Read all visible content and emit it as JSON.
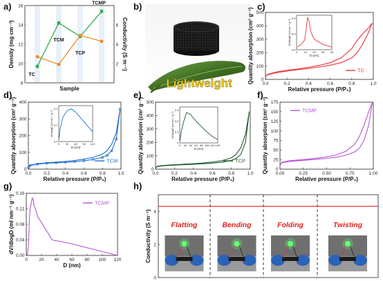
{
  "figure": {
    "panel_labels": [
      "a)",
      "b)",
      "c)",
      "d)",
      "e)",
      "f)",
      "g)",
      "h)"
    ],
    "photo_caption": "Lightweight"
  },
  "chart_data": [
    {
      "panel": "a",
      "type": "line",
      "categories": [
        "TC",
        "TCM",
        "TCP",
        "TCMP"
      ],
      "xlabel": "Sample",
      "ylabel_left": "Density (mg cm⁻³)",
      "ylabel_right": "Conductivity (S m⁻¹)",
      "ylim_left": [
        8,
        16
      ],
      "yticks_left": [
        "8",
        "10",
        "12",
        "14",
        "16"
      ],
      "ylim_right": [
        0,
        8
      ],
      "yticks_right": [
        "2",
        "4",
        "6"
      ],
      "colors": {
        "density": "#37ab4a",
        "conductivity": "#f08a24"
      },
      "series": [
        {
          "axis": "left",
          "values": [
            9.7,
            14.2,
            12.8,
            15.4
          ]
        },
        {
          "axis": "right",
          "values": [
            2.7,
            1.9,
            4.9,
            4.3
          ]
        }
      ]
    },
    {
      "panel": "c",
      "type": "line",
      "color": "#e8333b",
      "xlabel": "Relative pressure (P/P₀)",
      "ylabel": "Quantity absorption (cm³ g⁻¹)",
      "ylim": [
        0,
        500
      ],
      "yticks": [
        "0",
        "100",
        "200",
        "300",
        "400",
        "500"
      ],
      "xlim": [
        0,
        1
      ],
      "xticks": [
        "0.0",
        "0.2",
        "0.4",
        "0.6",
        "0.8",
        "1.0"
      ],
      "series": [
        {
          "name": "TC",
          "x": [
            0.0,
            0.02,
            0.1,
            0.2,
            0.3,
            0.4,
            0.5,
            0.6,
            0.7,
            0.8,
            0.85,
            0.9,
            0.95,
            0.99
          ],
          "y": [
            20,
            35,
            50,
            62,
            72,
            82,
            93,
            106,
            125,
            160,
            200,
            260,
            340,
            420
          ],
          "desorption_y": [
            20,
            38,
            55,
            68,
            78,
            90,
            105,
            125,
            160,
            230,
            290,
            340,
            380,
            420
          ]
        }
      ],
      "inset": {
        "xlabel": "D (nm)",
        "ylabel": "dV/dlogD (ml nm⁻¹ g⁻¹)",
        "xticks": [
          "0",
          "10",
          "20",
          "30",
          "40"
        ],
        "yticks": [
          "0.0",
          "0.3",
          "0.6"
        ],
        "x": [
          1,
          5,
          9,
          11,
          12.5,
          14,
          16,
          20,
          30,
          40
        ],
        "y": [
          0.05,
          0.1,
          0.18,
          0.4,
          0.62,
          0.55,
          0.35,
          0.2,
          0.1,
          0.05
        ]
      }
    },
    {
      "panel": "d",
      "type": "line",
      "color": "#1f6fd0",
      "xlabel": "Relative pressure (P/P₀)",
      "ylabel": "Quantity absorption (cm³ g⁻¹)",
      "ylim": [
        0,
        400
      ],
      "yticks": [
        "0",
        "100",
        "200",
        "300",
        "400"
      ],
      "xlim": [
        0,
        1
      ],
      "xticks": [
        "0.0",
        "0.2",
        "0.4",
        "0.6",
        "0.8",
        "1.0"
      ],
      "series": [
        {
          "name": "TCM",
          "x": [
            0.0,
            0.02,
            0.1,
            0.2,
            0.3,
            0.4,
            0.5,
            0.6,
            0.7,
            0.8,
            0.85,
            0.9,
            0.95,
            0.99
          ],
          "y": [
            10,
            22,
            30,
            35,
            38,
            41,
            45,
            50,
            58,
            70,
            82,
            110,
            180,
            360
          ],
          "desorption_y": [
            10,
            24,
            33,
            38,
            42,
            46,
            52,
            60,
            70,
            90,
            110,
            150,
            220,
            360
          ]
        }
      ],
      "inset": {
        "xlabel": "D (nm)",
        "ylabel": "dV/dlogD (ml nm⁻¹ g⁻¹)",
        "xticks": [
          "0",
          "30",
          "60",
          "90",
          "120"
        ],
        "yticks": [
          "0.0",
          "0.1",
          "0.2"
        ],
        "x": [
          1,
          5,
          15,
          30,
          45,
          60,
          80,
          100,
          120
        ],
        "y": [
          0.02,
          0.08,
          0.15,
          0.19,
          0.2,
          0.18,
          0.14,
          0.1,
          0.06
        ]
      }
    },
    {
      "panel": "e",
      "type": "line",
      "color": "#1e5b2c",
      "xlabel": "Relative pressure (P/P₀)",
      "ylabel": "Quantity absorption (cm³ g⁻¹)",
      "ylim": [
        0,
        500
      ],
      "yticks": [
        "0",
        "100",
        "200",
        "300",
        "400",
        "500"
      ],
      "xlim": [
        0,
        1
      ],
      "xticks": [
        "0.0",
        "0.2",
        "0.4",
        "0.6",
        "0.8",
        "1.0"
      ],
      "series": [
        {
          "name": "TCP",
          "x": [
            0.0,
            0.02,
            0.1,
            0.2,
            0.3,
            0.4,
            0.5,
            0.6,
            0.7,
            0.8,
            0.85,
            0.9,
            0.95,
            0.99
          ],
          "y": [
            10,
            20,
            26,
            30,
            33,
            36,
            40,
            45,
            52,
            65,
            80,
            110,
            200,
            430
          ],
          "desorption_y": [
            10,
            22,
            29,
            33,
            37,
            41,
            46,
            53,
            63,
            85,
            110,
            160,
            260,
            430
          ]
        }
      ],
      "inset": {
        "xlabel": "D (nm)",
        "ylabel": "dV/dlogD (ml nm⁻¹ g⁻¹)",
        "xticks": [
          "0",
          "20",
          "40",
          "60",
          "80",
          "100",
          "120",
          "140"
        ],
        "yticks": [
          "0",
          "0.1",
          "0.2",
          "0.3"
        ],
        "x": [
          1,
          5,
          15,
          25,
          40,
          60,
          80,
          100,
          120,
          140
        ],
        "y": [
          0.02,
          0.1,
          0.2,
          0.28,
          0.26,
          0.2,
          0.15,
          0.1,
          0.06,
          0.03
        ]
      }
    },
    {
      "panel": "f",
      "type": "line",
      "color": "#b156d3",
      "xlabel": "Relative pressure (P/P₀)",
      "ylabel": "Quantity absorption (cm³ g⁻¹)",
      "ylim": [
        0,
        175
      ],
      "yticks": [
        "0",
        "25",
        "50",
        "75",
        "100",
        "125",
        "150",
        "175"
      ],
      "xlim": [
        0,
        1
      ],
      "xticks": [
        "0.00",
        "0.25",
        "0.50",
        "0.75",
        "1.00"
      ],
      "series": [
        {
          "name": "TCMP",
          "x": [
            0.0,
            0.02,
            0.1,
            0.2,
            0.3,
            0.4,
            0.5,
            0.6,
            0.7,
            0.8,
            0.85,
            0.9,
            0.95,
            0.99
          ],
          "y": [
            10,
            17,
            20,
            22,
            24,
            26,
            28,
            31,
            36,
            45,
            55,
            75,
            115,
            175
          ],
          "desorption_y": [
            10,
            18,
            22,
            24,
            26,
            29,
            32,
            37,
            46,
            65,
            85,
            115,
            150,
            175
          ]
        }
      ]
    },
    {
      "panel": "g",
      "type": "line",
      "color": "#b156d3",
      "xlabel": "D (nm)",
      "ylabel": "dV/dlogD (ml nm⁻¹ g⁻¹)",
      "xlim": [
        0,
        120
      ],
      "xticks": [
        "0",
        "20",
        "40",
        "60",
        "80",
        "100",
        "120"
      ],
      "ylim": [
        0,
        0.16
      ],
      "yticks": [
        "0.00",
        "0.04",
        "0.08",
        "0.12",
        "0.16"
      ],
      "series": [
        {
          "name": "TCMP",
          "x": [
            1,
            2,
            3,
            4,
            5,
            6,
            7,
            8,
            9,
            10,
            12,
            15,
            20,
            34,
            60,
            90,
            120
          ],
          "y": [
            0.0,
            0.01,
            0.03,
            0.09,
            0.12,
            0.13,
            0.14,
            0.148,
            0.145,
            0.13,
            0.12,
            0.1,
            0.085,
            0.04,
            0.03,
            0.015,
            0.0
          ]
        }
      ]
    },
    {
      "panel": "h",
      "type": "line",
      "ylabel": "Conductivity (S m⁻¹)",
      "ylim": [
        0,
        5
      ],
      "yticks": [
        "0",
        "2",
        "4"
      ],
      "color": "#e0231c",
      "value": 4.3,
      "states": [
        "Flatting",
        "Bending",
        "Folding",
        "Twisting"
      ]
    }
  ]
}
